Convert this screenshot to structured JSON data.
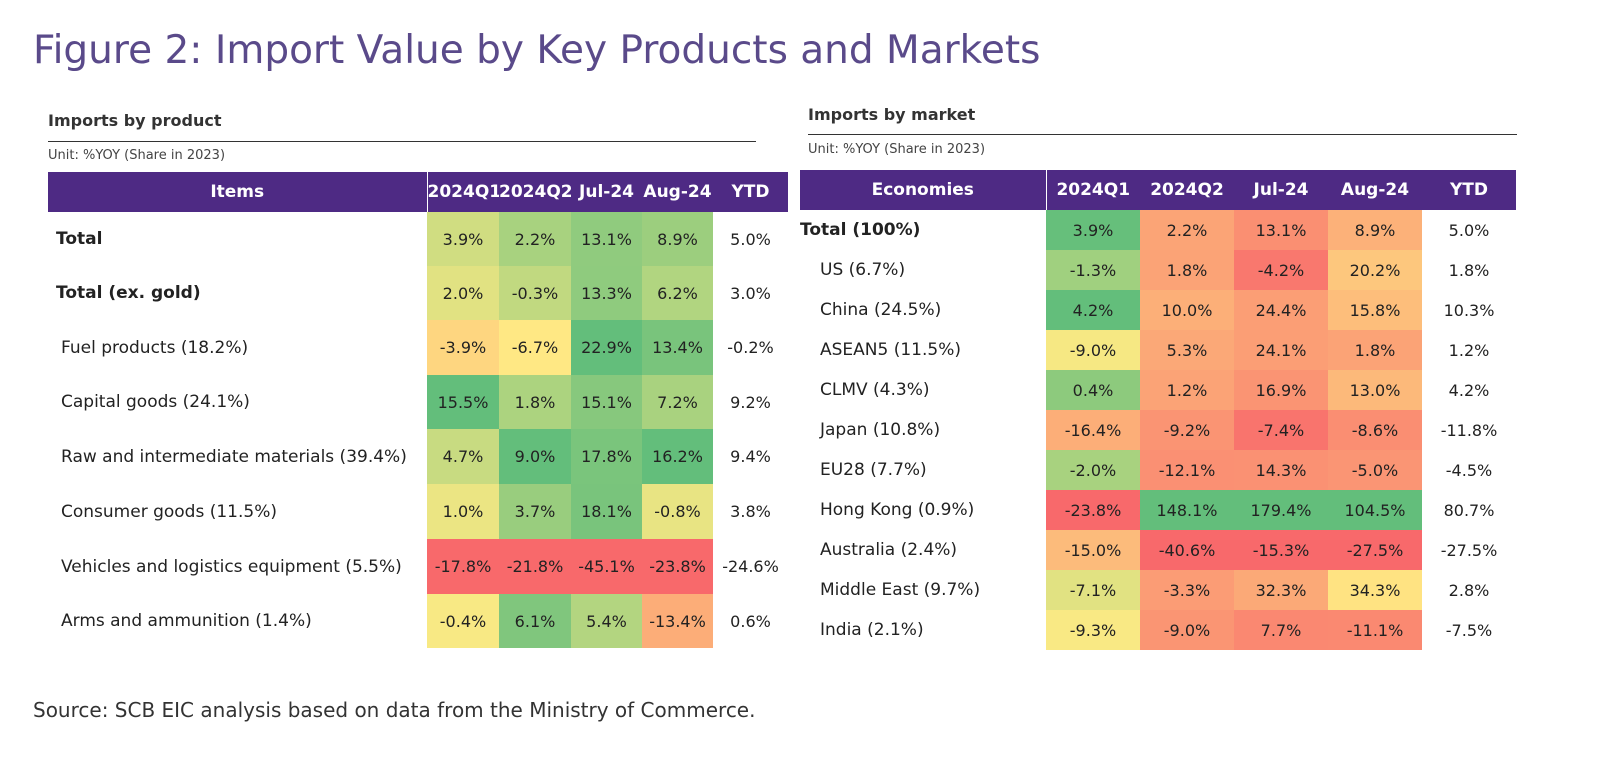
{
  "figure_title": "Figure 2: Import Value by Key Products and Markets",
  "source": "Source: SCB EIC analysis based on data from the Ministry of Commerce.",
  "colors": {
    "header_bg": "#4e2a84",
    "title": "#5a4a8a",
    "scale_low": "#f8696b",
    "scale_mid": "#ffeb84",
    "scale_high": "#63be7b"
  },
  "chart_data": [
    {
      "type": "table",
      "title": "Imports by product",
      "unit": "Unit: %YOY (Share in 2023)",
      "columns": [
        "Items",
        "2024Q1",
        "2024Q2",
        "Jul-24",
        "Aug-24",
        "YTD"
      ],
      "rows": [
        {
          "label": "Total",
          "bold": true,
          "values": [
            "3.9%",
            "2.2%",
            "13.1%",
            "8.9%",
            "5.0%"
          ]
        },
        {
          "label": "Total (ex. gold)",
          "bold": true,
          "values": [
            "2.0%",
            "-0.3%",
            "13.3%",
            "6.2%",
            "3.0%"
          ]
        },
        {
          "label": "Fuel products (18.2%)",
          "bold": false,
          "values": [
            "-3.9%",
            "-6.7%",
            "22.9%",
            "13.4%",
            "-0.2%"
          ]
        },
        {
          "label": "Capital goods (24.1%)",
          "bold": false,
          "values": [
            "15.5%",
            "1.8%",
            "15.1%",
            "7.2%",
            "9.2%"
          ]
        },
        {
          "label": "Raw and intermediate materials (39.4%)",
          "bold": false,
          "values": [
            "4.7%",
            "9.0%",
            "17.8%",
            "16.2%",
            "9.4%"
          ]
        },
        {
          "label": "Consumer goods (11.5%)",
          "bold": false,
          "values": [
            "1.0%",
            "3.7%",
            "18.1%",
            "-0.8%",
            "3.8%"
          ]
        },
        {
          "label": "Vehicles and logistics equipment (5.5%)",
          "bold": false,
          "values": [
            "-17.8%",
            "-21.8%",
            "-45.1%",
            "-23.8%",
            "-24.6%"
          ]
        },
        {
          "label": "Arms and ammunition (1.4%)",
          "bold": false,
          "values": [
            "-0.4%",
            "6.1%",
            "5.4%",
            "-13.4%",
            "0.6%"
          ]
        }
      ]
    },
    {
      "type": "table",
      "title": "Imports by market",
      "unit": "Unit: %YOY (Share in 2023)",
      "columns": [
        "Economies",
        "2024Q1",
        "2024Q2",
        "Jul-24",
        "Aug-24",
        "YTD"
      ],
      "rows": [
        {
          "label": "Total (100%)",
          "bold": true,
          "values": [
            "3.9%",
            "2.2%",
            "13.1%",
            "8.9%",
            "5.0%"
          ]
        },
        {
          "label": "US (6.7%)",
          "bold": false,
          "values": [
            "-1.3%",
            "1.8%",
            "-4.2%",
            "20.2%",
            "1.8%"
          ]
        },
        {
          "label": "China (24.5%)",
          "bold": false,
          "values": [
            "4.2%",
            "10.0%",
            "24.4%",
            "15.8%",
            "10.3%"
          ]
        },
        {
          "label": "ASEAN5 (11.5%)",
          "bold": false,
          "values": [
            "-9.0%",
            "5.3%",
            "24.1%",
            "1.8%",
            "1.2%"
          ]
        },
        {
          "label": "CLMV (4.3%)",
          "bold": false,
          "values": [
            "0.4%",
            "1.2%",
            "16.9%",
            "13.0%",
            "4.2%"
          ]
        },
        {
          "label": "Japan (10.8%)",
          "bold": false,
          "values": [
            "-16.4%",
            "-9.2%",
            "-7.4%",
            "-8.6%",
            "-11.8%"
          ]
        },
        {
          "label": "EU28 (7.7%)",
          "bold": false,
          "values": [
            "-2.0%",
            "-12.1%",
            "14.3%",
            "-5.0%",
            "-4.5%"
          ]
        },
        {
          "label": "Hong Kong (0.9%)",
          "bold": false,
          "values": [
            "-23.8%",
            "148.1%",
            "179.4%",
            "104.5%",
            "80.7%"
          ]
        },
        {
          "label": "Australia (2.4%)",
          "bold": false,
          "values": [
            "-15.0%",
            "-40.6%",
            "-15.3%",
            "-27.5%",
            "-27.5%"
          ]
        },
        {
          "label": "Middle East (9.7%)",
          "bold": false,
          "values": [
            "-7.1%",
            "-3.3%",
            "32.3%",
            "34.3%",
            "2.8%"
          ]
        },
        {
          "label": "India (2.1%)",
          "bold": false,
          "values": [
            "-9.3%",
            "-9.0%",
            "7.7%",
            "-11.1%",
            "-7.5%"
          ]
        }
      ]
    }
  ]
}
